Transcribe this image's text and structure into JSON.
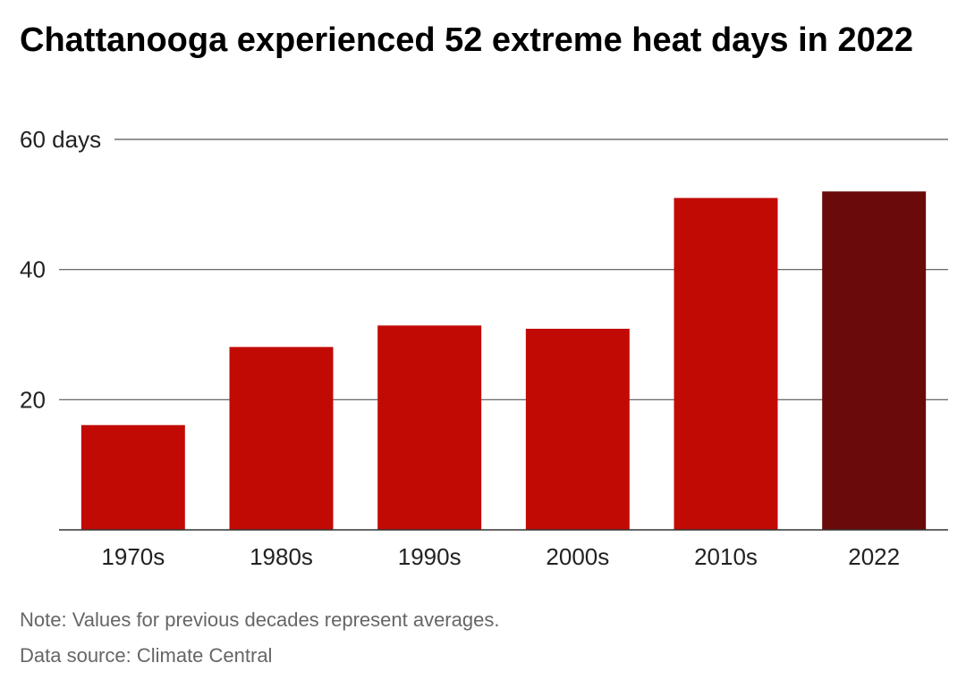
{
  "chart_data": {
    "type": "bar",
    "title": "Chattanooga experienced 52 extreme heat days in 2022",
    "categories": [
      "1970s",
      "1980s",
      "1990s",
      "2000s",
      "2010s",
      "2022"
    ],
    "values": [
      16.1,
      28.1,
      31.4,
      30.9,
      51.0,
      52.0
    ],
    "ylim": [
      0,
      60
    ],
    "yticks": [
      {
        "value": 20,
        "label": "20"
      },
      {
        "value": 40,
        "label": "40"
      },
      {
        "value": 60,
        "label": "60 days"
      }
    ],
    "grid": true,
    "colors": {
      "default": "#c20a05",
      "highlight": "#6b0a0a",
      "grid": "#555555",
      "axis": "#333333"
    },
    "highlight_index": 5
  },
  "footer": {
    "note": "Note: Values for previous decades represent averages.",
    "source": "Data source: Climate Central"
  }
}
